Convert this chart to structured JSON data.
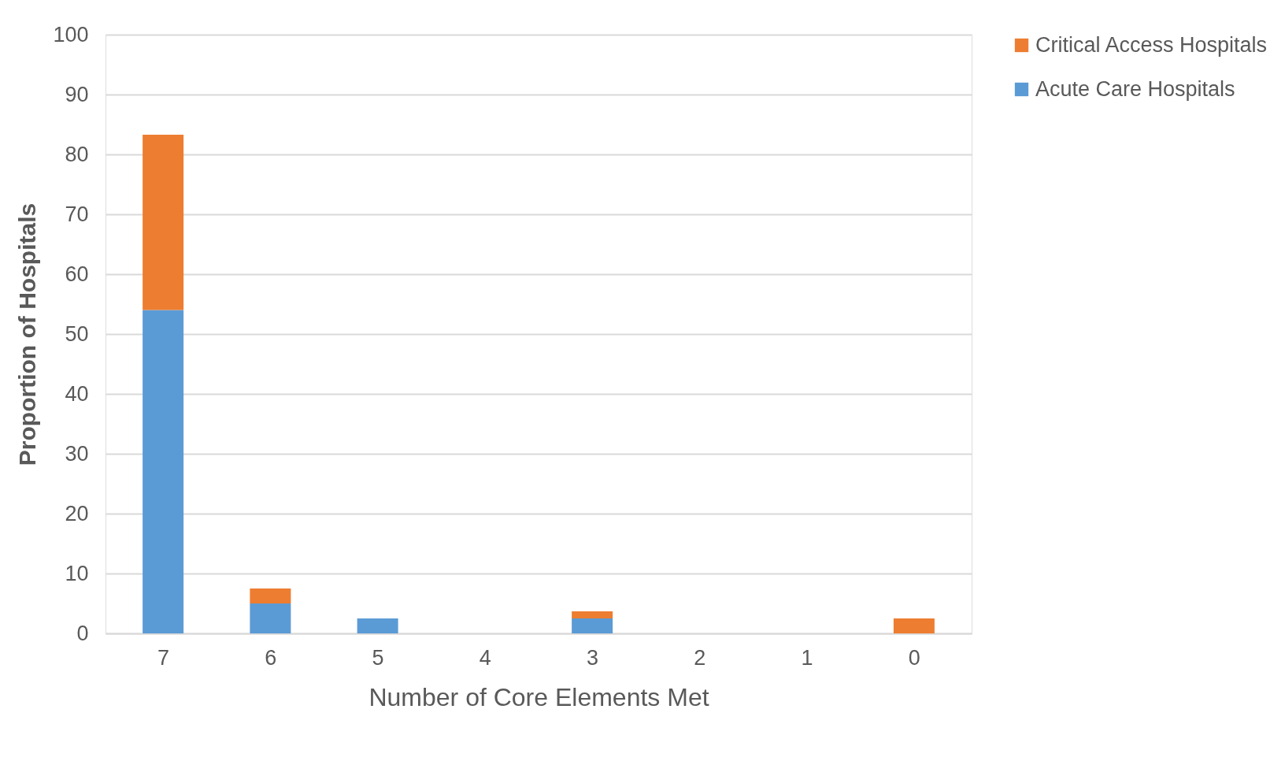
{
  "chart_data": {
    "type": "bar",
    "stacked": true,
    "xlabel": "Number of Core Elements Met",
    "ylabel": "Proportion of Hospitals",
    "categories": [
      "7",
      "6",
      "5",
      "4",
      "3",
      "2",
      "1",
      "0"
    ],
    "series": [
      {
        "name": "Acute Care Hospitals",
        "color": "#5b9bd5",
        "values": [
          54,
          5,
          2.5,
          0,
          2.5,
          0,
          0,
          0
        ]
      },
      {
        "name": "Critical Access Hospitals",
        "color": "#ed7d31",
        "values": [
          29.3,
          2.5,
          0,
          0,
          1.2,
          0,
          0,
          2.5
        ]
      }
    ],
    "ylim": [
      0,
      100
    ],
    "yticks": [
      0,
      10,
      20,
      30,
      40,
      50,
      60,
      70,
      80,
      90,
      100
    ],
    "grid": "y",
    "legend": "right"
  }
}
